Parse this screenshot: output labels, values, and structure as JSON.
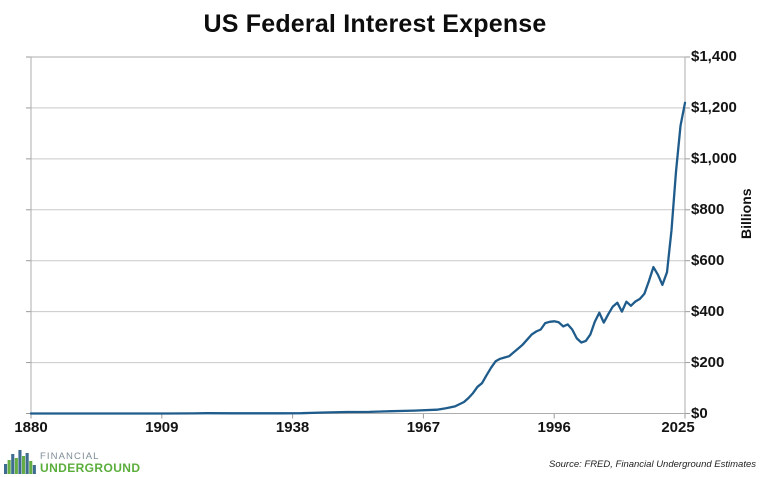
{
  "title": "US Federal Interest Expense",
  "source_note": "Source: FRED, Financial Underground Estimates",
  "logo": {
    "line1": "FINANCIAL",
    "line2": "UNDERGROUND"
  },
  "colors": {
    "line": "#1F5C8B",
    "gridline": "#C9C9C9",
    "plot_border": "#ADADAD",
    "tick": "#9B9B9B",
    "logo_bar_blue": "#3E6C90",
    "logo_bar_green": "#64AD45",
    "logo_text_financial": "#7D8C96",
    "logo_text_underground": "#5BAE3C"
  },
  "chart_data": {
    "type": "line",
    "title": "US Federal Interest Expense",
    "xlabel": "",
    "ylabel": "Billions",
    "xlim": [
      1880,
      2025
    ],
    "ylim": [
      0,
      1400
    ],
    "x_ticks": [
      1880,
      1909,
      1938,
      1967,
      1996,
      2025
    ],
    "x_tick_labels": [
      "1880",
      "1909",
      "1938",
      "1967",
      "1996",
      "2025"
    ],
    "y_ticks": [
      0,
      200,
      400,
      600,
      800,
      1000,
      1200,
      1400
    ],
    "y_tick_labels": [
      "$0",
      "$200",
      "$400",
      "$600",
      "$800",
      "$1,000",
      "$1,200",
      "$1,400"
    ],
    "grid": "horizontal",
    "legend": "none",
    "series": [
      {
        "name": "US Federal Interest Expense ($ Billions)",
        "points": [
          [
            1880,
            0.1
          ],
          [
            1890,
            0.1
          ],
          [
            1900,
            0.1
          ],
          [
            1910,
            0.1
          ],
          [
            1916,
            0.2
          ],
          [
            1919,
            1.0
          ],
          [
            1925,
            0.9
          ],
          [
            1930,
            0.7
          ],
          [
            1935,
            0.8
          ],
          [
            1940,
            1.1
          ],
          [
            1945,
            3.8
          ],
          [
            1950,
            5.7
          ],
          [
            1955,
            6.4
          ],
          [
            1960,
            9.2
          ],
          [
            1965,
            11.3
          ],
          [
            1970,
            15
          ],
          [
            1972,
            21
          ],
          [
            1974,
            28
          ],
          [
            1976,
            45
          ],
          [
            1977,
            61
          ],
          [
            1978,
            80
          ],
          [
            1979,
            105
          ],
          [
            1980,
            119
          ],
          [
            1981,
            150
          ],
          [
            1982,
            180
          ],
          [
            1983,
            205
          ],
          [
            1984,
            215
          ],
          [
            1985,
            220
          ],
          [
            1986,
            225
          ],
          [
            1987,
            240
          ],
          [
            1988,
            255
          ],
          [
            1989,
            270
          ],
          [
            1990,
            290
          ],
          [
            1991,
            310
          ],
          [
            1992,
            322
          ],
          [
            1993,
            330
          ],
          [
            1994,
            355
          ],
          [
            1995,
            360
          ],
          [
            1996,
            362
          ],
          [
            1997,
            358
          ],
          [
            1998,
            342
          ],
          [
            1999,
            350
          ],
          [
            2000,
            330
          ],
          [
            2001,
            295
          ],
          [
            2002,
            279
          ],
          [
            2003,
            285
          ],
          [
            2004,
            310
          ],
          [
            2005,
            360
          ],
          [
            2006,
            396
          ],
          [
            2007,
            357
          ],
          [
            2008,
            390
          ],
          [
            2009,
            420
          ],
          [
            2010,
            435
          ],
          [
            2011,
            400
          ],
          [
            2012,
            439
          ],
          [
            2013,
            423
          ],
          [
            2014,
            440
          ],
          [
            2015,
            450
          ],
          [
            2016,
            470
          ],
          [
            2017,
            520
          ],
          [
            2018,
            575
          ],
          [
            2019,
            545
          ],
          [
            2020,
            505
          ],
          [
            2021,
            555
          ],
          [
            2022,
            720
          ],
          [
            2023,
            950
          ],
          [
            2024,
            1130
          ],
          [
            2025,
            1220
          ]
        ]
      }
    ]
  }
}
